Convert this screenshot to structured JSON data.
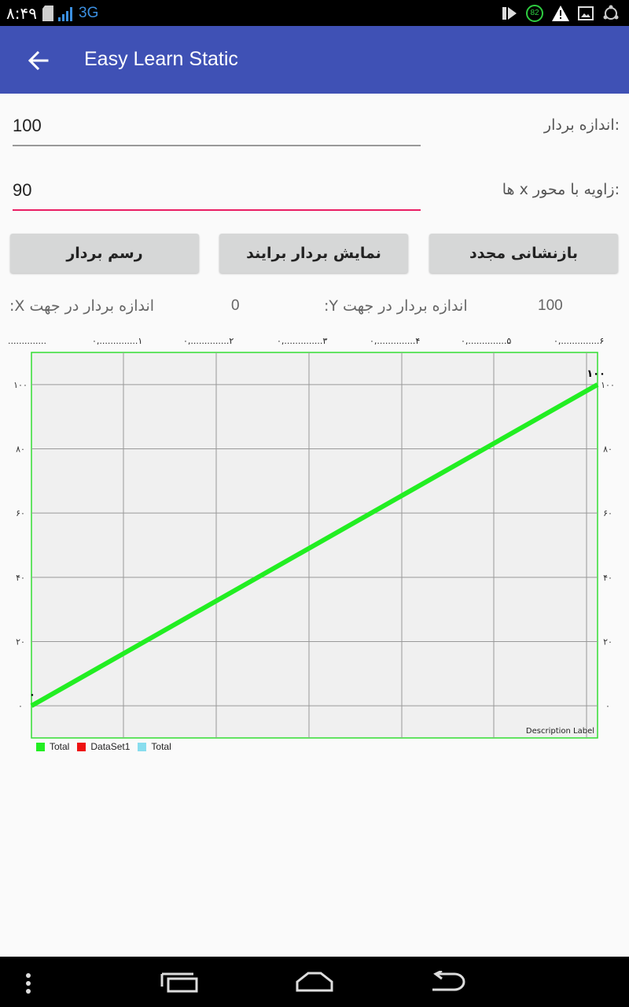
{
  "status_bar": {
    "time": "۸:۴۹",
    "network": "3G",
    "battery_badge": "82",
    "icons": [
      "sd-card-icon",
      "signal-icon",
      "media-icon",
      "battery-badge-icon",
      "warning-icon",
      "image-icon",
      "sync-icon"
    ]
  },
  "app_bar": {
    "title": "Easy Learn Static",
    "back_icon": "arrow-back-icon",
    "color": "#3f51b5"
  },
  "form": {
    "magnitude_label": ":اندازه بردار",
    "magnitude_value": "100",
    "angle_label": ":زاویه با محور x ها",
    "angle_value": "90",
    "accent_color": "#e91e63"
  },
  "buttons": {
    "draw": "رسم بردار",
    "show_resultant": "نمایش بردار برایند",
    "reset": "بازنشانی مجدد"
  },
  "info": {
    "x_label": "اندازه بردار در جهت X:",
    "x_value": "0",
    "y_label": "اندازه بردار در جهت Y:",
    "y_value": "100"
  },
  "chart_data": {
    "type": "line",
    "x_tick_labels": [
      "..............",
      "۰,..............۱",
      "۰,..............۲",
      "۰,..............۳",
      "۰,..............۴",
      "۰,..............۵",
      "۰,..............۶"
    ],
    "y_tick_labels_left": [
      "۰",
      "۲۰",
      "۴۰",
      "۶۰",
      "۸۰",
      "۱۰۰"
    ],
    "y_tick_labels_right": [
      "۰",
      "۲۰",
      "۴۰",
      "۶۰",
      "۸۰",
      "۱۰۰"
    ],
    "ylim": [
      -10,
      110
    ],
    "series": [
      {
        "name": "Total",
        "color": "#22ee22",
        "x": [
          0,
          1
        ],
        "y": [
          0,
          100
        ],
        "point_labels": [
          "۰",
          "۱۰۰"
        ]
      }
    ],
    "legend": [
      {
        "name": "Total",
        "color": "#22ee22"
      },
      {
        "name": "DataSet1",
        "color": "#ee1111"
      },
      {
        "name": "Total",
        "color": "#88ddee"
      }
    ],
    "description": "Description Label",
    "grid": true,
    "legend_position": "bottom-left"
  },
  "nav_bar": {
    "icons": [
      "menu-icon",
      "recents-icon",
      "home-icon",
      "back-nav-icon"
    ]
  }
}
